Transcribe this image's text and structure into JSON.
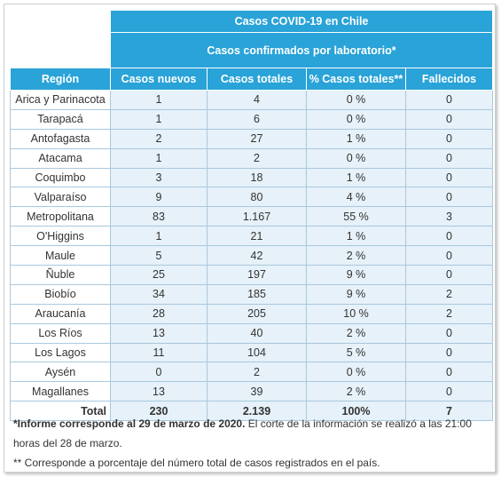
{
  "table": {
    "title": "Casos COVID-19 en Chile",
    "subtitle": "Casos confirmados por laboratorio*",
    "headers": [
      "Región",
      "Casos nuevos",
      "Casos totales",
      "% Casos totales**",
      "Fallecidos"
    ],
    "rows": [
      [
        "Arica y Parinacota",
        "1",
        "4",
        "0 %",
        "0"
      ],
      [
        "Tarapacá",
        "1",
        "6",
        "0 %",
        "0"
      ],
      [
        "Antofagasta",
        "2",
        "27",
        "1 %",
        "0"
      ],
      [
        "Atacama",
        "1",
        "2",
        "0 %",
        "0"
      ],
      [
        "Coquimbo",
        "3",
        "18",
        "1 %",
        "0"
      ],
      [
        "Valparaíso",
        "9",
        "80",
        "4 %",
        "0"
      ],
      [
        "Metropolitana",
        "83",
        "1.167",
        "55 %",
        "3"
      ],
      [
        "O'Higgins",
        "1",
        "21",
        "1 %",
        "0"
      ],
      [
        "Maule",
        "5",
        "42",
        "2 %",
        "0"
      ],
      [
        "Ñuble",
        "25",
        "197",
        "9 %",
        "0"
      ],
      [
        "Biobío",
        "34",
        "185",
        "9 %",
        "2"
      ],
      [
        "Araucanía",
        "28",
        "205",
        "10 %",
        "2"
      ],
      [
        "Los Ríos",
        "13",
        "40",
        "2 %",
        "0"
      ],
      [
        "Los Lagos",
        "11",
        "104",
        "5 %",
        "0"
      ],
      [
        "Aysén",
        "0",
        "2",
        "0 %",
        "0"
      ],
      [
        "Magallanes",
        "13",
        "39",
        "2 %",
        "0"
      ]
    ],
    "total": [
      "Total",
      "230",
      "2.139",
      "100%",
      "7"
    ]
  },
  "notes": {
    "note1_bold": "*Informe corresponde al 29 de marzo de 2020.",
    "note1_rest": " El corte de la información se realizó a las 21:00 horas del 28 de marzo.",
    "note2": "** Corresponde a porcentaje del número total de casos registrados en el país."
  },
  "colors": {
    "header_bg": "#29a3d8",
    "cell_bg": "#e6f1f9",
    "border": "#a9c8de"
  }
}
